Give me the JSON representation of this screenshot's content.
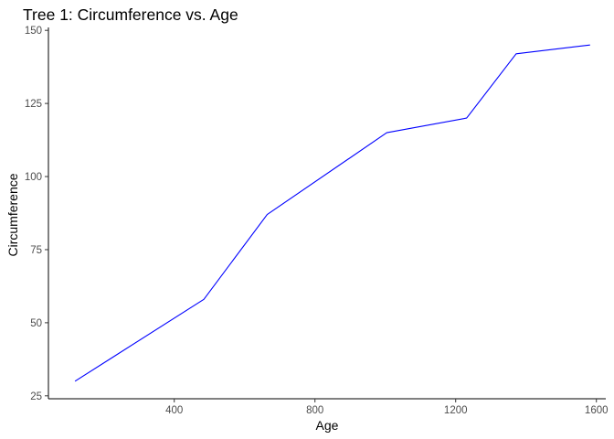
{
  "chart_data": {
    "type": "line",
    "title": "Tree 1: Circumference vs. Age",
    "xlabel": "Age",
    "ylabel": "Circumference",
    "xlim": [
      42.3,
      1626.7
    ],
    "ylim": [
      24,
      151
    ],
    "x_ticks": [
      400,
      800,
      1200,
      1600
    ],
    "y_ticks": [
      25,
      50,
      75,
      100,
      125,
      150
    ],
    "grid": false,
    "legend": "none",
    "line_color": "#0000ff",
    "series": [
      {
        "x": [
          118,
          484,
          664,
          1004,
          1231,
          1372,
          1582
        ],
        "y": [
          30,
          58,
          87,
          115,
          120,
          142,
          145
        ]
      }
    ]
  }
}
